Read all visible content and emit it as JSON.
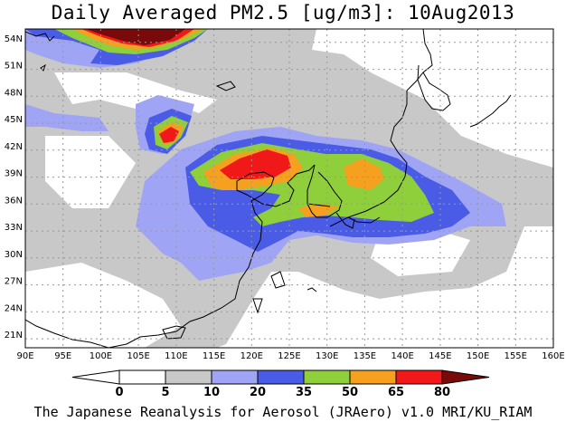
{
  "title": "Daily Averaged PM2.5 [ug/m3]: 10Aug2013",
  "footer": "The Japanese Reanalysis for Aerosol (JRAero) v1.0 MRI/KU_RIAM",
  "map": {
    "lon_range": [
      90,
      160
    ],
    "lat_range": [
      19.5,
      55
    ],
    "lon_labels": [
      "90E",
      "95E",
      "100E",
      "105E",
      "110E",
      "115E",
      "120E",
      "125E",
      "130E",
      "135E",
      "140E",
      "145E",
      "150E",
      "155E",
      "160E"
    ],
    "lat_labels": [
      "21N",
      "24N",
      "27N",
      "30N",
      "33N",
      "36N",
      "39N",
      "42N",
      "45N",
      "48N",
      "51N",
      "54N"
    ]
  },
  "colorbar": {
    "labels": [
      "0",
      "5",
      "10",
      "20",
      "35",
      "50",
      "65",
      "80"
    ],
    "colors": [
      "#ffffff",
      "#c8c8c8",
      "#a0a4f5",
      "#4a5be6",
      "#8fcf3c",
      "#f5a01e",
      "#f01818",
      "#7a0a0a"
    ]
  }
}
